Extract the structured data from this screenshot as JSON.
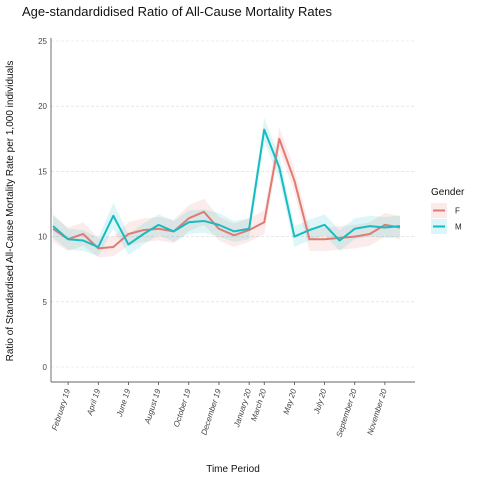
{
  "chart_data": {
    "type": "line",
    "title": "Age-standardidised Ratio of All-Cause Mortality Rates",
    "xlabel": "Time Period",
    "ylabel": "Ratio of Standardised All-Cause Mortality Rate per 1,000 individuals",
    "ylim": [
      0,
      25
    ],
    "yticks": [
      0,
      5,
      10,
      15,
      20,
      25
    ],
    "x": [
      "January 19",
      "February 19",
      "March 19",
      "April 19",
      "May 19",
      "June 19",
      "July 19",
      "August 19",
      "September 19",
      "October 19",
      "November 19",
      "December 19",
      "January 20",
      "February 20",
      "March 20",
      "April 20",
      "May 20",
      "June 20",
      "July 20",
      "August 20",
      "September 20",
      "October 20",
      "November 20",
      "December 20"
    ],
    "xtick_labels": [
      "February 19",
      "April 19",
      "June 19",
      "August 19",
      "October 19",
      "December 19",
      "January 20",
      "March 20",
      "May 20",
      "July 20",
      "September 20",
      "November 20"
    ],
    "xtick_indices": [
      1,
      3,
      5,
      7,
      9,
      11,
      13,
      14,
      16,
      18,
      20,
      22
    ],
    "grid": true,
    "legend": {
      "title": "Gender",
      "position": "right"
    },
    "series": [
      {
        "name": "F",
        "color": "#e07b73",
        "values": [
          10.6,
          9.8,
          10.2,
          9.1,
          9.2,
          10.2,
          10.5,
          10.6,
          10.4,
          11.4,
          11.9,
          10.6,
          10.1,
          10.5,
          11.1,
          17.5,
          14.3,
          9.8,
          9.8,
          9.9,
          10.0,
          10.2,
          10.9,
          10.7
        ],
        "lower": [
          9.6,
          8.9,
          9.3,
          8.4,
          8.5,
          9.3,
          9.6,
          9.7,
          9.5,
          10.4,
          10.9,
          9.7,
          9.2,
          9.6,
          10.2,
          16.7,
          13.4,
          8.9,
          8.9,
          9.0,
          9.1,
          9.3,
          10.0,
          9.8
        ],
        "upper": [
          11.6,
          10.7,
          11.1,
          9.9,
          10.0,
          11.1,
          11.4,
          11.5,
          11.3,
          12.4,
          12.9,
          11.5,
          11.0,
          11.4,
          12.0,
          18.4,
          15.2,
          10.7,
          10.7,
          10.8,
          10.9,
          11.1,
          11.8,
          11.6
        ]
      },
      {
        "name": "M",
        "color": "#17bcc3",
        "values": [
          10.8,
          9.8,
          9.7,
          9.2,
          11.6,
          9.4,
          10.2,
          10.9,
          10.4,
          11.1,
          11.2,
          10.9,
          10.4,
          10.6,
          18.2,
          15.3,
          10.0,
          10.5,
          10.9,
          9.7,
          10.6,
          10.8,
          10.7,
          10.8
        ],
        "lower": [
          9.9,
          9.0,
          8.9,
          8.5,
          10.6,
          8.6,
          9.4,
          10.1,
          9.6,
          10.2,
          10.3,
          10.0,
          9.6,
          9.8,
          17.3,
          14.4,
          9.2,
          9.7,
          10.1,
          8.9,
          9.8,
          10.0,
          9.9,
          10.0
        ],
        "upper": [
          11.7,
          10.6,
          10.5,
          9.9,
          12.6,
          10.2,
          11.0,
          11.7,
          11.2,
          12.0,
          12.1,
          11.8,
          11.2,
          11.4,
          19.1,
          16.2,
          10.8,
          11.3,
          11.7,
          10.5,
          11.4,
          11.6,
          11.5,
          11.6
        ]
      }
    ]
  }
}
